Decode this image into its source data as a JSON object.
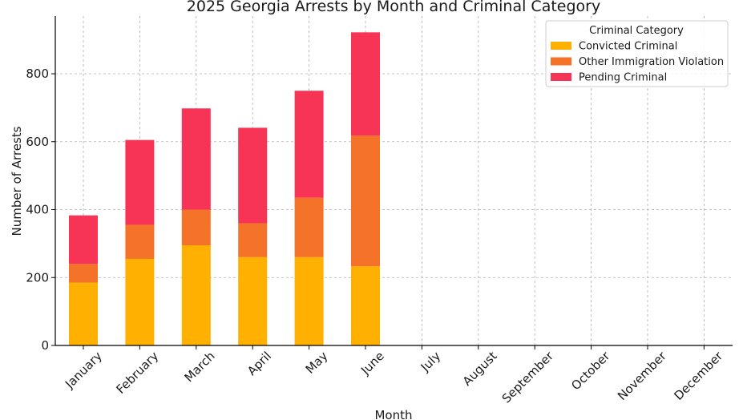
{
  "chart_data": {
    "type": "bar",
    "stacked": true,
    "title": "2025 Georgia Arrests by Month and Criminal Category",
    "xlabel": "Month",
    "ylabel": "Number of Arrests",
    "ylim": [
      0,
      970
    ],
    "yticks": [
      0,
      200,
      400,
      600,
      800
    ],
    "grid": true,
    "legend_position": "top-right",
    "legend_title": "Criminal Category",
    "categories": [
      "January",
      "February",
      "March",
      "April",
      "May",
      "June",
      "July",
      "August",
      "September",
      "October",
      "November",
      "December"
    ],
    "series": [
      {
        "name": "Convicted Criminal",
        "color": "#FFB000",
        "values": [
          185,
          255,
          295,
          260,
          260,
          233,
          0,
          0,
          0,
          0,
          0,
          0
        ]
      },
      {
        "name": "Other Immigration Violation",
        "color": "#F57328",
        "values": [
          55,
          100,
          105,
          100,
          175,
          385,
          0,
          0,
          0,
          0,
          0,
          0
        ]
      },
      {
        "name": "Pending Criminal",
        "color": "#F73356",
        "values": [
          143,
          250,
          298,
          281,
          315,
          304,
          0,
          0,
          0,
          0,
          0,
          0
        ]
      }
    ]
  }
}
